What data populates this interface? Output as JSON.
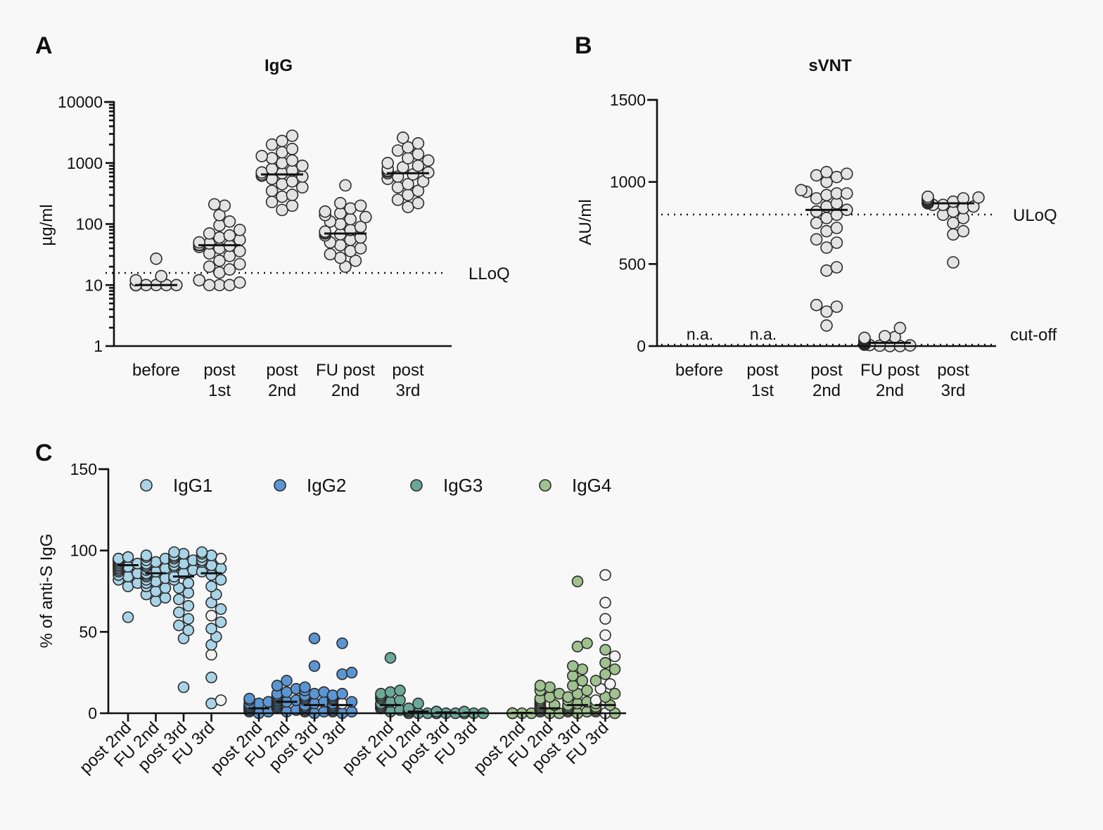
{
  "colors": {
    "gray": "#e3e3e3",
    "IgG1": "#a9d4e8",
    "IgG2": "#5b95d3",
    "IgG3": "#6ba89a",
    "IgG4": "#9fc290",
    "white": "#f2f2f2"
  },
  "chart_data": [
    {
      "panel": "A",
      "type": "scatter",
      "title": "IgG",
      "ylabel": "µg/ml",
      "yscale": "log",
      "ylim": [
        1,
        10000
      ],
      "yticks": [
        1,
        10,
        100,
        1000,
        10000
      ],
      "ytick_labels": [
        "1",
        "10",
        "100",
        "1000",
        "10000"
      ],
      "categories": [
        [
          "before"
        ],
        [
          "post",
          "1st"
        ],
        [
          "post",
          "2nd"
        ],
        [
          "FU post",
          "2nd"
        ],
        [
          "post",
          "3rd"
        ]
      ],
      "reference_lines": [
        {
          "label": "LLoQ",
          "value": 16
        }
      ],
      "medians": [
        10,
        45,
        650,
        70,
        680
      ],
      "points": [
        [
          10,
          10,
          10,
          10,
          10,
          10,
          10,
          10,
          10,
          10,
          10,
          10,
          10,
          10,
          10,
          10,
          10,
          10,
          10,
          10,
          10,
          10,
          12,
          14,
          27
        ],
        [
          10,
          10,
          10,
          11,
          12,
          12,
          16,
          18,
          20,
          22,
          25,
          30,
          33,
          36,
          40,
          42,
          44,
          45,
          46,
          48,
          50,
          55,
          60,
          65,
          70,
          80,
          95,
          110,
          140,
          200,
          210
        ],
        [
          170,
          200,
          230,
          280,
          300,
          350,
          400,
          450,
          500,
          550,
          600,
          620,
          650,
          680,
          700,
          750,
          800,
          900,
          1000,
          1100,
          1200,
          1300,
          1500,
          1700,
          2000,
          2300,
          2800
        ],
        [
          20,
          25,
          28,
          32,
          36,
          40,
          45,
          50,
          55,
          60,
          65,
          68,
          70,
          72,
          75,
          80,
          90,
          100,
          110,
          120,
          130,
          140,
          150,
          160,
          180,
          200,
          220,
          430
        ],
        [
          190,
          220,
          250,
          300,
          350,
          400,
          450,
          500,
          550,
          600,
          650,
          680,
          700,
          720,
          750,
          800,
          850,
          900,
          1000,
          1100,
          1200,
          1400,
          1600,
          1800,
          2100,
          2600
        ]
      ]
    },
    {
      "panel": "B",
      "type": "scatter",
      "title": "sVNT",
      "ylabel": "AU/ml",
      "yscale": "linear",
      "ylim": [
        0,
        1500
      ],
      "yticks": [
        0,
        500,
        1000,
        1500
      ],
      "ytick_labels": [
        "0",
        "500",
        "1000",
        "1500"
      ],
      "categories": [
        [
          "before"
        ],
        [
          "post",
          "1st"
        ],
        [
          "post",
          "2nd"
        ],
        [
          "FU post",
          "2nd"
        ],
        [
          "post",
          "3rd"
        ]
      ],
      "reference_lines": [
        {
          "label": "ULoQ",
          "value": 800
        },
        {
          "label": "cut-off",
          "value": 10
        }
      ],
      "na_label": "n.a.",
      "medians": [
        null,
        null,
        830,
        20,
        870
      ],
      "points": [
        [],
        [],
        [
          125,
          210,
          240,
          250,
          460,
          480,
          600,
          630,
          650,
          700,
          720,
          750,
          780,
          800,
          820,
          830,
          850,
          870,
          900,
          920,
          930,
          930,
          940,
          950,
          1000,
          1030,
          1040,
          1050,
          1060
        ],
        [
          0,
          0,
          2,
          4,
          6,
          8,
          10,
          12,
          14,
          15,
          16,
          18,
          20,
          20,
          22,
          24,
          25,
          28,
          30,
          35,
          40,
          45,
          50,
          55,
          60,
          110
        ],
        [
          510,
          680,
          700,
          750,
          780,
          800,
          820,
          840,
          850,
          860,
          860,
          870,
          870,
          875,
          880,
          880,
          885,
          890,
          890,
          895,
          900,
          900,
          905,
          910
        ]
      ]
    },
    {
      "panel": "C",
      "type": "scatter",
      "ylabel": "% of anti-S IgG",
      "yscale": "linear",
      "ylim": [
        0,
        150
      ],
      "yticks": [
        0,
        50,
        100,
        150
      ],
      "ytick_labels": [
        "0",
        "50",
        "100",
        "150"
      ],
      "legend_position": "top",
      "legend": [
        "IgG1",
        "IgG2",
        "IgG3",
        "IgG4"
      ],
      "groups": [
        {
          "subclass": "IgG1",
          "categories": [
            "post 2nd",
            "FU 2nd",
            "post 3rd",
            "FU 3rd"
          ],
          "medians": [
            91,
            86,
            84,
            86
          ],
          "points": [
            [
              59,
              78,
              80,
              82,
              84,
              85,
              86,
              87,
              88,
              89,
              89,
              90,
              90,
              91,
              91,
              92,
              92,
              93,
              93,
              94,
              94,
              95,
              95,
              96
            ],
            [
              69,
              71,
              73,
              75,
              77,
              78,
              80,
              81,
              82,
              83,
              84,
              85,
              86,
              86,
              87,
              88,
              89,
              90,
              91,
              92,
              93,
              94,
              95,
              96,
              97
            ],
            [
              16,
              46,
              51,
              54,
              58,
              62,
              66,
              70,
              74,
              77,
              80,
              82,
              84,
              86,
              88,
              90,
              91,
              92,
              93,
              94,
              95,
              96,
              97,
              98,
              99
            ],
            [
              6,
              8,
              22,
              36,
              42,
              47,
              52,
              56,
              60,
              64,
              68,
              73,
              78,
              82,
              85,
              87,
              89,
              91,
              93,
              94,
              95,
              96,
              97,
              98,
              99
            ]
          ],
          "highlight": [
            [],
            [],
            [],
            [
              8,
              36,
              60,
              95
            ]
          ]
        },
        {
          "subclass": "IgG2",
          "categories": [
            "post 2nd",
            "FU 2nd",
            "post 3rd",
            "FU 3rd"
          ],
          "medians": [
            3,
            7,
            5,
            5
          ],
          "points": [
            [
              0,
              1,
              1,
              2,
              2,
              2,
              3,
              3,
              3,
              3,
              4,
              4,
              4,
              5,
              5,
              6,
              6,
              7,
              8,
              9
            ],
            [
              1,
              2,
              3,
              4,
              5,
              5,
              6,
              6,
              7,
              7,
              8,
              8,
              9,
              10,
              10,
              11,
              12,
              13,
              15,
              17,
              20
            ],
            [
              0,
              1,
              1,
              2,
              2,
              3,
              3,
              4,
              4,
              5,
              5,
              6,
              7,
              8,
              9,
              10,
              11,
              12,
              13,
              14,
              16,
              29,
              46
            ],
            [
              0,
              1,
              1,
              2,
              2,
              3,
              4,
              4,
              5,
              5,
              6,
              6,
              7,
              8,
              9,
              10,
              11,
              12,
              24,
              25,
              43
            ]
          ],
          "highlight": [
            [],
            [],
            [],
            [
              6,
              23
            ]
          ]
        },
        {
          "subclass": "IgG3",
          "categories": [
            "post 2nd",
            "FU 2nd",
            "post 3rd",
            "FU 3rd"
          ],
          "medians": [
            5,
            1,
            0.5,
            0.3
          ],
          "points": [
            [
              1,
              2,
              3,
              3,
              4,
              4,
              5,
              5,
              6,
              6,
              7,
              8,
              9,
              10,
              11,
              12,
              13,
              14,
              34
            ],
            [
              0,
              0,
              0,
              1,
              1,
              1,
              1,
              1,
              2,
              2,
              2,
              3,
              6
            ],
            [
              0,
              0,
              0,
              0,
              0,
              1,
              1,
              1,
              1
            ],
            [
              0,
              0,
              0,
              0,
              0,
              0,
              0,
              0,
              1
            ]
          ],
          "highlight": [
            [],
            [],
            [],
            []
          ]
        },
        {
          "subclass": "IgG4",
          "categories": [
            "post 2nd",
            "FU 2nd",
            "post 3rd",
            "FU 3rd"
          ],
          "medians": [
            0.2,
            3,
            5,
            5
          ],
          "points": [
            [
              0,
              0,
              0,
              0,
              0,
              0,
              0,
              0,
              0,
              0
            ],
            [
              0,
              0,
              1,
              1,
              2,
              2,
              3,
              3,
              4,
              4,
              5,
              5,
              6,
              7,
              8,
              9,
              10,
              12,
              14,
              16,
              17
            ],
            [
              0,
              1,
              1,
              2,
              2,
              3,
              4,
              5,
              6,
              7,
              8,
              10,
              12,
              14,
              17,
              20,
              23,
              27,
              29,
              41,
              43,
              81
            ],
            [
              0,
              0,
              1,
              2,
              3,
              4,
              5,
              6,
              8,
              10,
              12,
              15,
              18,
              20,
              24,
              27,
              31,
              35,
              39,
              48,
              58,
              68,
              85
            ]
          ],
          "highlight": [
            [],
            [],
            [],
            [
              0,
              3,
              8,
              15,
              18,
              35,
              48,
              58,
              68,
              85
            ]
          ]
        }
      ]
    }
  ]
}
